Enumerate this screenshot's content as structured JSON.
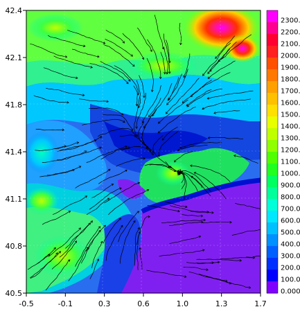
{
  "map": {
    "x_axis": {
      "ticks": [
        "-0.5",
        "-0.1",
        "0.3",
        "0.6",
        "1.0",
        "1.3",
        "1.7"
      ],
      "range": [
        -0.5,
        1.7
      ]
    },
    "y_axis": {
      "ticks": [
        "42.4",
        "42.1",
        "41.8",
        "41.4",
        "41.1",
        "40.8",
        "40.5"
      ],
      "range": [
        40.5,
        42.4
      ]
    },
    "overlay": "streamlines",
    "grid": true
  },
  "colorbar": {
    "labels": [
      "2300.",
      "2200.",
      "2100.",
      "2000.",
      "1900.",
      "1800.",
      "1700.",
      "1600.",
      "1500.",
      "1400.",
      "1300.",
      "1200.",
      "1100.",
      "1000.",
      "900.0",
      "800.0",
      "700.0",
      "600.0",
      "500.0",
      "400.0",
      "300.0",
      "200.0",
      "100.0",
      "0.000"
    ],
    "colors": [
      "#ff00ff",
      "#ff0090",
      "#ff0030",
      "#ff2020",
      "#ff5000",
      "#ff7800",
      "#ffa000",
      "#ffc000",
      "#ffe000",
      "#e8ff00",
      "#c0ff00",
      "#90ff00",
      "#50ff00",
      "#20ff20",
      "#00ff60",
      "#00ff9a",
      "#00ffd8",
      "#00e8ff",
      "#00c0ff",
      "#0090ff",
      "#0060ff",
      "#0030ff",
      "#0000ff",
      "#8000ff"
    ]
  }
}
